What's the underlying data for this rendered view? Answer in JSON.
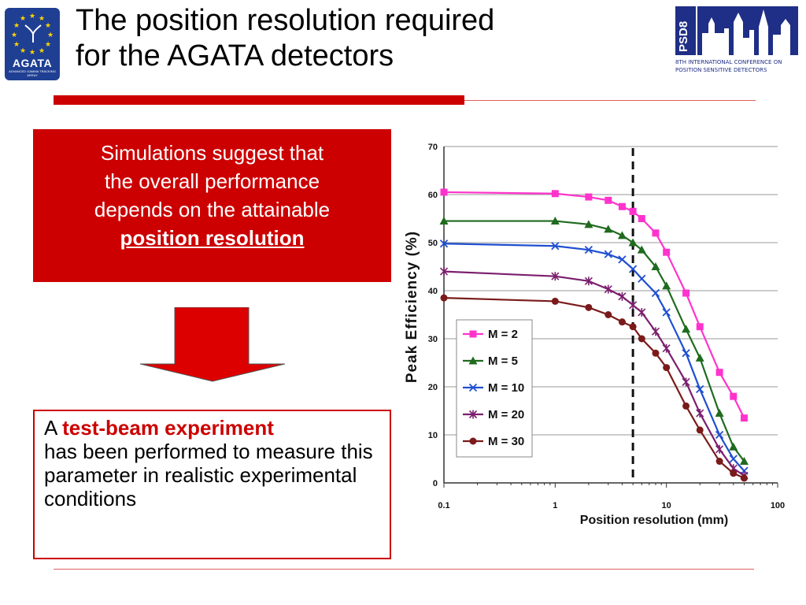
{
  "header": {
    "title_line1": "The position resolution required",
    "title_line2": "for the AGATA detectors"
  },
  "logos": {
    "agata_word": "AGATA",
    "agata_sub": "ADVANCED GAMMA TRACKING ARRAY",
    "psd_label": "PSD8",
    "psd_conf_line1": "8TH INTERNATIONAL CONFERENCE ON",
    "psd_conf_line2": "POSITION SENSITIVE DETECTORS"
  },
  "callout": {
    "line1": "Simulations suggest that",
    "line2": "the overall performance",
    "line3": "depends on the attainable",
    "emphasis": "position resolution"
  },
  "result_box": {
    "prefix": "A ",
    "emphasis": "test-beam experiment",
    "rest": "has been performed to measure this parameter in realistic experimental conditions"
  },
  "colors": {
    "accent_red": "#cc0000",
    "psd_blue": "#1f2e86"
  },
  "chart_data": {
    "type": "line",
    "title": "",
    "xlabel": "Position resolution (mm)",
    "ylabel": "Peak Efficiency (%)",
    "x_scale": "log",
    "xlim": [
      0.1,
      100
    ],
    "ylim": [
      0,
      70
    ],
    "x_ticks": [
      "0.1",
      "1",
      "10",
      "100"
    ],
    "y_ticks": [
      "0",
      "10",
      "20",
      "30",
      "40",
      "50",
      "60",
      "70"
    ],
    "grid": true,
    "legend_position": "lower-left",
    "reference_line_x": 5,
    "series": [
      {
        "name": "M =  2",
        "color": "#ff33cc",
        "marker": "square",
        "x": [
          0.1,
          1,
          2,
          3,
          4,
          5,
          6,
          8,
          10,
          15,
          20,
          30,
          40,
          50
        ],
        "y": [
          60.5,
          60.2,
          59.5,
          58.8,
          57.5,
          56.5,
          55,
          52,
          48,
          39.5,
          32.5,
          23,
          18,
          13.5
        ]
      },
      {
        "name": "M =  5",
        "color": "#1f6b1f",
        "marker": "triangle",
        "x": [
          0.1,
          1,
          2,
          3,
          4,
          5,
          6,
          8,
          10,
          15,
          20,
          30,
          40,
          50
        ],
        "y": [
          54.5,
          54.5,
          53.8,
          52.8,
          51.5,
          50,
          48.5,
          45,
          41,
          32,
          26,
          14.5,
          7.5,
          4.5
        ]
      },
      {
        "name": "M = 10",
        "color": "#1f4fd1",
        "marker": "x",
        "x": [
          0.1,
          1,
          2,
          3,
          4,
          5,
          6,
          8,
          10,
          15,
          20,
          30,
          40,
          50
        ],
        "y": [
          49.8,
          49.3,
          48.5,
          47.6,
          46.5,
          44.5,
          42.5,
          39.5,
          35.5,
          27,
          19.5,
          10,
          5,
          2.5
        ]
      },
      {
        "name": "M = 20",
        "color": "#7b1f6e",
        "marker": "asterisk",
        "x": [
          0.1,
          1,
          2,
          3,
          4,
          5,
          6,
          8,
          10,
          15,
          20,
          30,
          40,
          50
        ],
        "y": [
          44,
          43,
          42,
          40.3,
          38.8,
          37,
          35.5,
          31.5,
          28,
          21,
          14.5,
          7,
          3,
          1.5
        ]
      },
      {
        "name": "M = 30",
        "color": "#7a1a1a",
        "marker": "circle",
        "x": [
          0.1,
          1,
          2,
          3,
          4,
          5,
          6,
          8,
          10,
          15,
          20,
          30,
          40,
          50
        ],
        "y": [
          38.5,
          37.8,
          36.5,
          35,
          33.5,
          32.5,
          30,
          27,
          24,
          16,
          11,
          4.5,
          2,
          1
        ]
      }
    ]
  }
}
